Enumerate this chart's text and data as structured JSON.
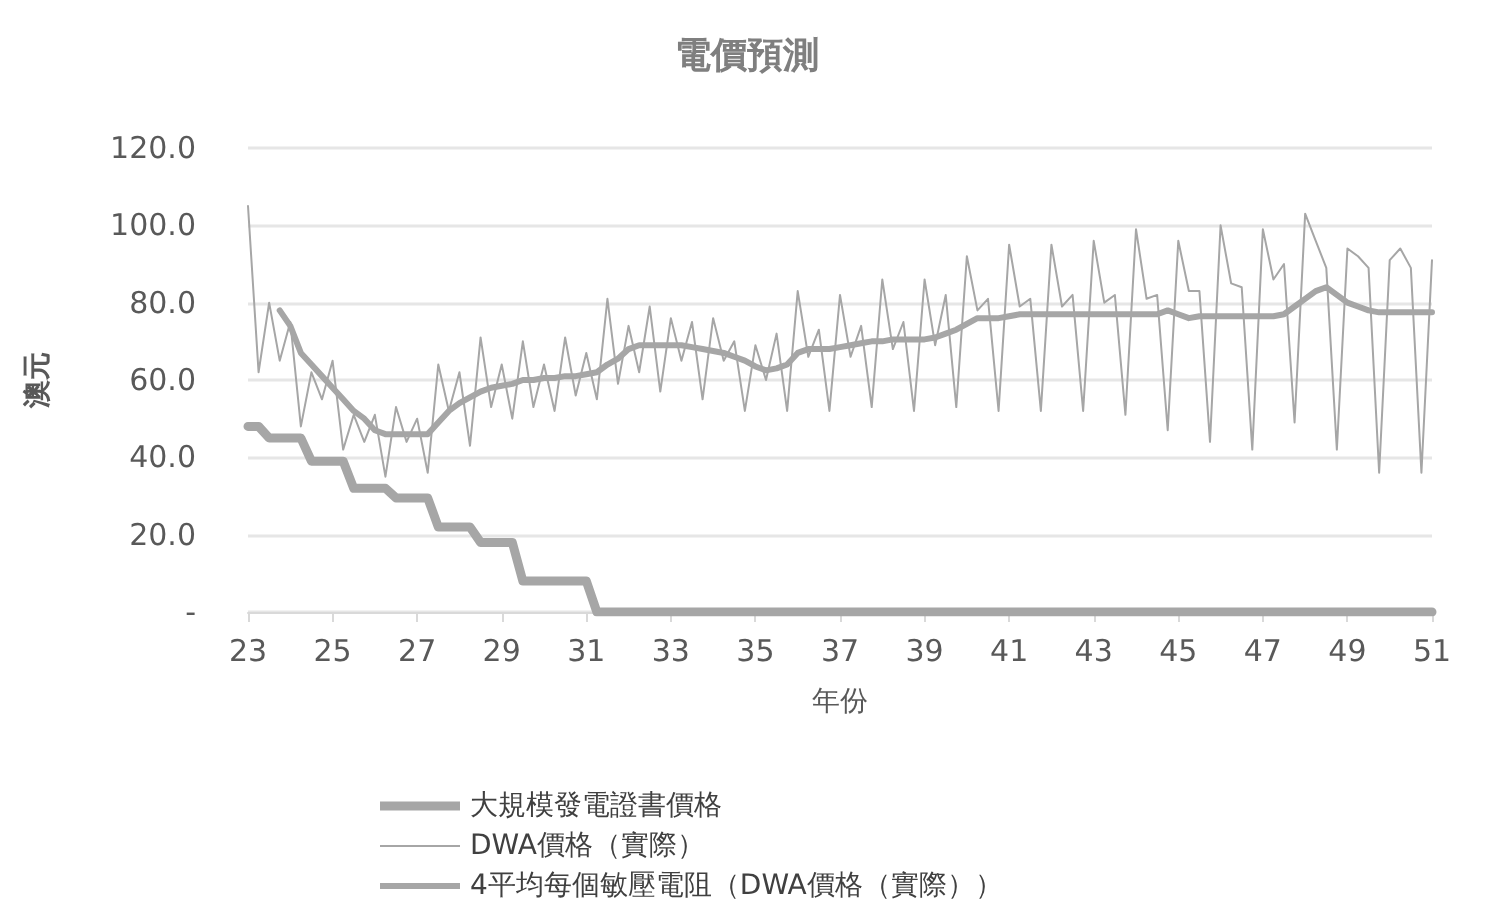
{
  "chart_data": {
    "type": "line",
    "title": "電價預測",
    "xlabel": "年份",
    "ylabel": "澳元",
    "categories": [
      "23",
      null,
      null,
      null,
      null,
      null,
      null,
      null,
      "25",
      null,
      null,
      null,
      null,
      null,
      null,
      null,
      "27",
      null,
      null,
      null,
      null,
      null,
      null,
      null,
      "29",
      null,
      null,
      null,
      null,
      null,
      null,
      null,
      "31",
      null,
      null,
      null,
      null,
      null,
      null,
      null,
      "33",
      null,
      null,
      null,
      null,
      null,
      null,
      null,
      "35",
      null,
      null,
      null,
      null,
      null,
      null,
      null,
      "37",
      null,
      null,
      null,
      null,
      null,
      null,
      null,
      "39",
      null,
      null,
      null,
      null,
      null,
      null,
      null,
      "41",
      null,
      null,
      null,
      null,
      null,
      null,
      null,
      "43",
      null,
      null,
      null,
      null,
      null,
      null,
      null,
      "45",
      null,
      null,
      null,
      null,
      null,
      null,
      null,
      "47",
      null,
      null,
      null,
      null,
      null,
      null,
      null,
      "49",
      null,
      null,
      null,
      null,
      null,
      null,
      null,
      "51"
    ],
    "series": [
      {
        "name": "大規模發電證書價格",
        "color": "#a6a6a6",
        "values": [
          48,
          48,
          45,
          45,
          45,
          45,
          39,
          39,
          39,
          39,
          32,
          32,
          32,
          32,
          29.5,
          29.5,
          29.5,
          29.5,
          22,
          22,
          22,
          22,
          18,
          18,
          18,
          18,
          8,
          8,
          8,
          8,
          8,
          8,
          8,
          0,
          0,
          0,
          0,
          0,
          0,
          0,
          0,
          0,
          0,
          0,
          0,
          0,
          0,
          0,
          0,
          0,
          0,
          0,
          0,
          0,
          0,
          0,
          0,
          0,
          0,
          0,
          0,
          0,
          0,
          0,
          0,
          0,
          0,
          0,
          0,
          0,
          0,
          0,
          0,
          0,
          0,
          0,
          0,
          0,
          0,
          0,
          0,
          0,
          0,
          0,
          0,
          0,
          0,
          0,
          0,
          0,
          0,
          0,
          0,
          0,
          0,
          0,
          0,
          0,
          0,
          0,
          0,
          0,
          0,
          0,
          0,
          0,
          0,
          0,
          0,
          0,
          0,
          0,
          0
        ]
      },
      {
        "name": "DWA價格（實際）",
        "color": "#a6a6a6",
        "values": [
          105,
          62,
          80,
          65,
          75,
          48,
          62,
          55,
          65,
          42,
          51,
          44,
          51,
          35,
          53,
          44,
          50,
          36,
          64,
          52,
          62,
          43,
          71,
          53,
          64,
          50,
          70,
          53,
          64,
          52,
          71,
          56,
          67,
          55,
          81,
          59,
          74,
          62,
          79,
          57,
          76,
          65,
          75,
          55,
          76,
          65,
          70,
          52,
          69,
          60,
          72,
          52,
          83,
          66,
          73,
          52,
          82,
          66,
          74,
          53,
          86,
          68,
          75,
          52,
          86,
          69,
          82,
          53,
          92,
          78,
          81,
          52,
          95,
          79,
          81,
          52,
          95,
          79,
          82,
          52,
          96,
          80,
          82,
          51,
          99,
          81,
          82,
          47,
          96,
          83,
          83,
          44,
          100,
          85,
          84,
          42,
          99,
          86,
          90,
          49,
          103,
          96,
          89,
          42,
          94,
          92,
          89,
          36,
          91,
          94,
          89,
          36,
          91
        ]
      },
      {
        "name": "4平均每個敏壓電阻（DWA價格（實際））",
        "color": "#a6a6a6",
        "values": [
          null,
          null,
          null,
          78,
          74,
          67,
          64,
          61,
          58,
          55,
          52,
          50,
          47,
          46,
          46,
          46,
          46,
          46,
          49,
          52,
          54,
          55.5,
          57,
          58,
          58.5,
          59,
          60,
          60,
          60.5,
          60.5,
          61,
          61,
          61.5,
          62,
          64,
          65.5,
          68,
          69,
          69,
          69,
          69,
          69,
          68.5,
          68,
          67.5,
          67,
          66,
          65,
          63.5,
          62.5,
          63,
          64,
          67,
          68,
          68,
          68,
          68.5,
          69,
          69.5,
          70,
          70,
          70.5,
          70.5,
          70.5,
          70.5,
          71,
          72,
          73,
          74.5,
          76,
          76,
          76,
          76.5,
          77,
          77,
          77,
          77,
          77,
          77,
          77,
          77,
          77,
          77,
          77,
          77,
          77,
          77,
          78,
          77,
          76,
          76.5,
          76.5,
          76.5,
          76.5,
          76.5,
          76.5,
          76.5,
          76.5,
          77,
          79,
          81,
          83,
          84,
          82,
          80,
          79,
          78,
          77.5,
          77.5,
          77.5,
          77.5,
          77.5,
          77.5
        ]
      }
    ],
    "ylim": [
      0,
      120
    ],
    "yticks": [
      {
        "value": 0,
        "label": "-"
      },
      {
        "value": 20,
        "label": "20.0"
      },
      {
        "value": 40,
        "label": "40.0"
      },
      {
        "value": 60,
        "label": "60.0"
      },
      {
        "value": 80,
        "label": "80.0"
      },
      {
        "value": 100,
        "label": "100.0"
      },
      {
        "value": 120,
        "label": "120.0"
      }
    ],
    "grid": "y",
    "legend": "bottom",
    "marker": "none",
    "line_style": "solid"
  }
}
